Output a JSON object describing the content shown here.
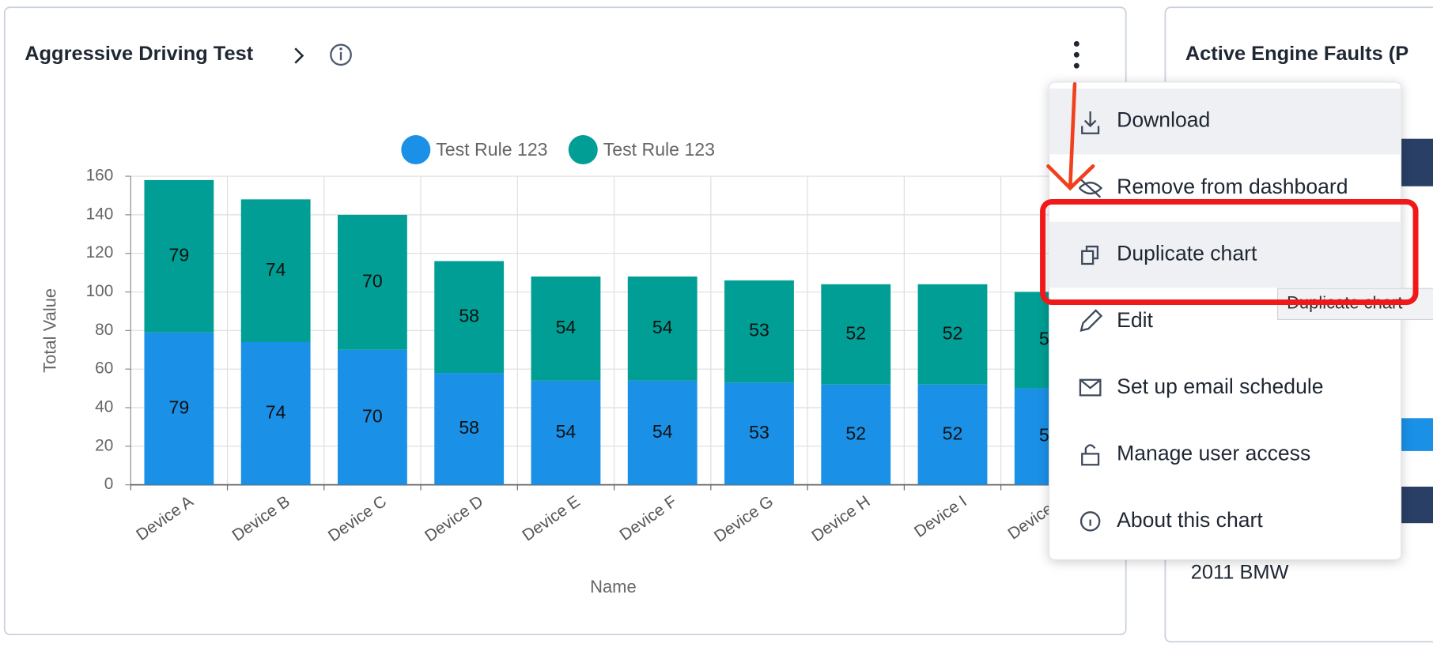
{
  "panel": {
    "title": "Aggressive Driving Test"
  },
  "chart_data": {
    "type": "bar",
    "stacked": true,
    "x_label": "Name",
    "y_label": "Total Value",
    "categories": [
      "Device A",
      "Device B",
      "Device C",
      "Device D",
      "Device E",
      "Device F",
      "Device G",
      "Device H",
      "Device I",
      "Device J"
    ],
    "series": [
      {
        "name": "Test Rule 123",
        "color": "#1a90e6",
        "values": [
          79,
          74,
          70,
          58,
          54,
          54,
          53,
          52,
          52,
          50
        ]
      },
      {
        "name": "Test Rule 123",
        "color": "#009e94",
        "values": [
          79,
          74,
          70,
          58,
          54,
          54,
          53,
          52,
          52,
          50
        ]
      }
    ],
    "ylim": [
      0,
      160
    ],
    "yticks": [
      0,
      20,
      40,
      60,
      80,
      100,
      120,
      140,
      160
    ],
    "grid": true,
    "legend": "top"
  },
  "menu": {
    "items": [
      "Download",
      "Remove from dashboard",
      "Duplicate chart",
      "Edit",
      "Set up email schedule",
      "Manage user access",
      "About this chart"
    ]
  },
  "tooltip": "Duplicate chart",
  "side_panel": {
    "title": "Active Engine Faults (P",
    "text": "2011 BMW"
  }
}
